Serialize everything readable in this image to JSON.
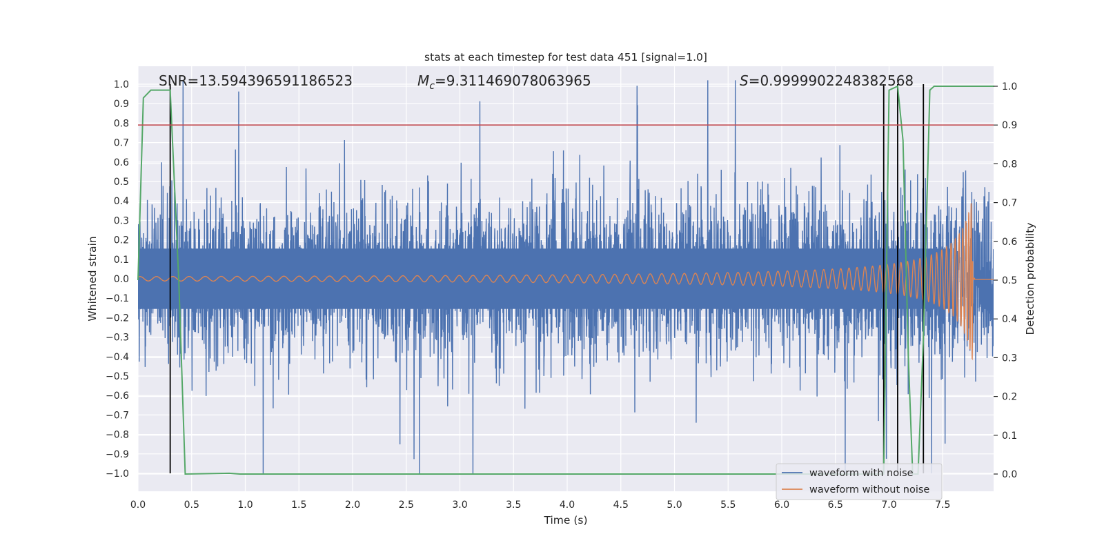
{
  "chart_data": {
    "type": "line",
    "title": "stats at each timestep for test data 451 [signal=1.0]",
    "xlabel": "Time (s)",
    "ylabel": "Whitened strain",
    "ylabel_right": "Detection probability",
    "xlim": [
      0.0,
      8.0
    ],
    "ylim": [
      -1.1,
      1.1
    ],
    "ylim_right": [
      -0.05,
      1.05
    ],
    "xticks": [
      "0.0",
      "0.5",
      "1.0",
      "1.5",
      "2.0",
      "2.5",
      "3.0",
      "3.5",
      "4.0",
      "4.5",
      "5.0",
      "5.5",
      "6.0",
      "6.5",
      "7.0",
      "7.5"
    ],
    "yticks": [
      "1.0",
      "0.9",
      "0.8",
      "0.7",
      "0.6",
      "0.5",
      "0.4",
      "0.3",
      "0.2",
      "0.1",
      "0.0",
      "−0.1",
      "−0.2",
      "−0.3",
      "−0.4",
      "−0.5",
      "−0.6",
      "−0.7",
      "−0.8",
      "−0.9",
      "−1.0"
    ],
    "yticks_right": [
      "1.0",
      "0.9",
      "0.8",
      "0.7",
      "0.6",
      "0.5",
      "0.4",
      "0.3",
      "0.2",
      "0.1",
      "0.0"
    ],
    "grid": true,
    "legend_position": "lower-right",
    "annotations": {
      "snr": "SNR=13.594396591186523",
      "mc_symbol": "M",
      "mc_subscript": "c",
      "mc_value": "=9.311469078063965",
      "s_symbol": "S",
      "s_value": "=0.9999902248382568"
    },
    "threshold": {
      "value": 0.9,
      "axis": "right",
      "color": "#c44e52"
    },
    "vertical_markers": {
      "x": [
        0.3,
        6.95,
        7.08,
        7.32
      ],
      "y_range": [
        -1.0,
        1.0
      ],
      "color": "#000000"
    },
    "series": [
      {
        "name": "waveform with noise",
        "color": "#4c72b0",
        "description": "noisy whitened strain, amplitude roughly ±0.6 with spikes to ±1.0"
      },
      {
        "name": "waveform without noise",
        "color": "#dd8452",
        "description": "chirp signal, amplitude ~0.015 growing to ~0.45 at merger near 7.75 s"
      },
      {
        "name": "detection probability",
        "color": "#55a868",
        "axis": "right",
        "points": [
          [
            0.0,
            0.5
          ],
          [
            0.05,
            0.97
          ],
          [
            0.12,
            0.99
          ],
          [
            0.3,
            0.99
          ],
          [
            0.38,
            0.5
          ],
          [
            0.44,
            0.0
          ],
          [
            0.85,
            0.002
          ],
          [
            0.95,
            0.0
          ],
          [
            6.95,
            0.0
          ],
          [
            7.0,
            0.99
          ],
          [
            7.08,
            1.0
          ],
          [
            7.13,
            0.86
          ],
          [
            7.18,
            0.3
          ],
          [
            7.22,
            0.0
          ],
          [
            7.27,
            0.0
          ],
          [
            7.32,
            0.35
          ],
          [
            7.38,
            0.99
          ],
          [
            7.42,
            1.0
          ],
          [
            7.98,
            1.0
          ]
        ]
      }
    ]
  }
}
